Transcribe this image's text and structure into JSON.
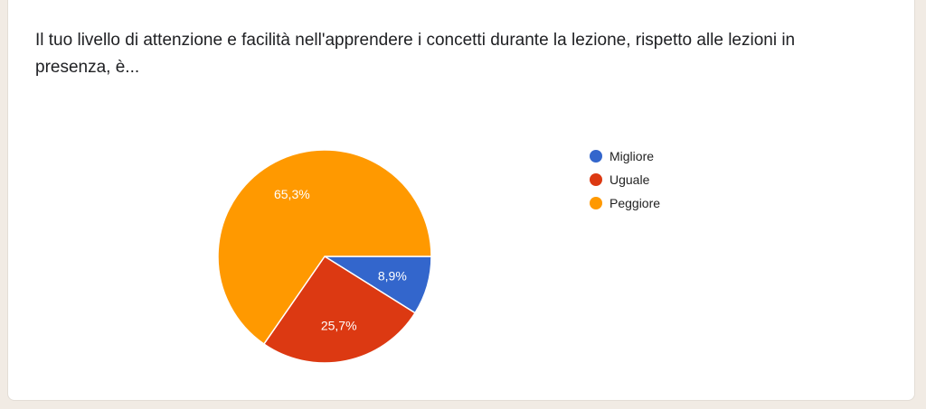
{
  "question": {
    "title": "Il tuo livello di attenzione e facilità nell'apprendere i concetti durante la lezione, rispetto alle lezioni in presenza, è..."
  },
  "chart_data": {
    "type": "pie",
    "legend_position": "right",
    "slices": [
      {
        "name": "Migliore",
        "value": 8.9,
        "label": "8,9%",
        "color": "#3366cc"
      },
      {
        "name": "Uguale",
        "value": 25.7,
        "label": "25,7%",
        "color": "#dc3912"
      },
      {
        "name": "Peggiore",
        "value": 65.3,
        "label": "65,3%",
        "color": "#ff9900"
      }
    ]
  }
}
